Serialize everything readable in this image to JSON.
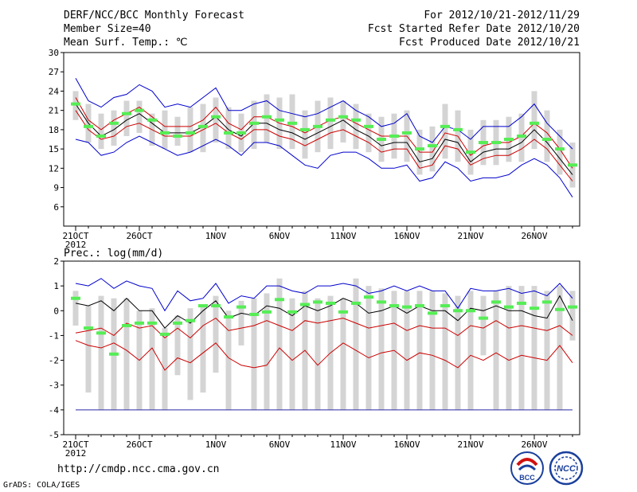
{
  "header": {
    "title": "DERF/NCC/BCC Monthly Forecast",
    "member_size": "Member Size=40",
    "variable": "Mean Surf. Temp.: ℃",
    "period": "For 2012/10/21-2012/11/29",
    "started": "Fcst Started Refer Date 2012/10/20",
    "produced": "Fcst Produced Date 2012/10/21"
  },
  "footer": {
    "url": "http://cmdp.ncc.cma.gov.cn",
    "credit": "GrADS: COLA/IGES",
    "logo_left_text": "BCC",
    "logo_right_text": "NCC"
  },
  "colors": {
    "mean_line": "#000000",
    "spread_line": "#cc0000",
    "extreme_line": "#0000cc",
    "box": "#d4d4d4",
    "marker": "#55ee55",
    "axis": "#000000"
  },
  "chart_data": [
    {
      "type": "line",
      "title": "Mean Surf. Temp.: ℃",
      "ylim": [
        3,
        30
      ],
      "yticks": [
        30,
        27,
        24,
        21,
        18,
        15,
        12,
        9,
        6
      ],
      "xticks": [
        {
          "day": 0,
          "label": "21OCT",
          "sub": "2012"
        },
        {
          "day": 5,
          "label": "26OCT"
        },
        {
          "day": 11,
          "label": "1NOV"
        },
        {
          "day": 16,
          "label": "6NOV"
        },
        {
          "day": 21,
          "label": "11NOV"
        },
        {
          "day": 26,
          "label": "16NOV"
        },
        {
          "day": 31,
          "label": "21NOV"
        },
        {
          "day": 36,
          "label": "26NOV"
        }
      ],
      "series": [
        {
          "name": "max",
          "role": "extreme",
          "values": [
            26.0,
            22.5,
            21.5,
            23.0,
            23.5,
            25.0,
            24.0,
            21.5,
            22.0,
            21.5,
            23.0,
            24.5,
            21.0,
            21.0,
            22.0,
            22.5,
            21.0,
            20.5,
            20.0,
            20.5,
            21.5,
            22.5,
            21.0,
            20.0,
            18.5,
            19.0,
            20.5,
            17.0,
            16.0,
            18.5,
            18.0,
            16.5,
            18.5,
            18.5,
            18.5,
            20.0,
            22.0,
            19.0,
            17.0,
            15.0
          ]
        },
        {
          "name": "upper",
          "role": "spread",
          "values": [
            23.0,
            19.5,
            18.0,
            19.5,
            20.5,
            21.5,
            20.0,
            18.5,
            18.5,
            18.5,
            19.5,
            21.5,
            19.0,
            18.0,
            20.0,
            20.0,
            19.0,
            18.5,
            17.5,
            18.5,
            19.5,
            20.0,
            19.0,
            18.0,
            17.0,
            17.0,
            17.0,
            14.5,
            14.5,
            17.5,
            17.0,
            14.0,
            15.5,
            16.0,
            16.0,
            17.0,
            19.0,
            17.5,
            15.0,
            12.0
          ]
        },
        {
          "name": "mean",
          "role": "mean",
          "values": [
            22.0,
            19.0,
            17.0,
            18.0,
            19.5,
            20.5,
            19.0,
            17.5,
            17.5,
            17.5,
            18.5,
            20.0,
            18.0,
            17.0,
            19.0,
            19.0,
            18.0,
            17.5,
            16.5,
            17.5,
            18.5,
            19.5,
            18.0,
            17.0,
            15.5,
            16.0,
            16.0,
            13.0,
            13.5,
            16.5,
            16.0,
            13.0,
            14.5,
            15.0,
            15.0,
            16.0,
            18.0,
            16.0,
            13.5,
            11.0
          ]
        },
        {
          "name": "lower",
          "role": "spread",
          "values": [
            21.0,
            18.0,
            16.5,
            17.0,
            18.5,
            19.0,
            18.0,
            17.0,
            17.0,
            17.0,
            18.0,
            19.0,
            17.5,
            16.5,
            18.0,
            18.0,
            17.0,
            16.5,
            15.5,
            16.5,
            17.5,
            18.0,
            17.0,
            16.0,
            14.5,
            15.0,
            15.0,
            12.0,
            12.5,
            15.5,
            15.0,
            12.5,
            13.5,
            14.0,
            14.0,
            15.0,
            16.5,
            15.0,
            12.5,
            10.0
          ]
        },
        {
          "name": "min",
          "role": "extreme",
          "values": [
            16.5,
            16.0,
            14.0,
            14.5,
            16.0,
            17.0,
            16.0,
            15.0,
            14.0,
            14.5,
            15.5,
            16.5,
            15.5,
            14.0,
            16.0,
            16.0,
            15.5,
            14.0,
            12.5,
            12.0,
            14.0,
            14.5,
            14.5,
            13.5,
            12.0,
            12.0,
            12.5,
            10.0,
            10.5,
            13.0,
            12.0,
            10.0,
            10.5,
            10.5,
            11.0,
            12.5,
            13.5,
            12.5,
            10.5,
            7.5
          ]
        }
      ],
      "boxes": [
        {
          "low": 19.5,
          "high": 24.0,
          "marker": 22.0
        },
        {
          "low": 16.0,
          "high": 22.0,
          "marker": 18.5
        },
        {
          "low": 15.0,
          "high": 20.5,
          "marker": 17.0
        },
        {
          "low": 15.5,
          "high": 21.0,
          "marker": 19.0
        },
        {
          "low": 17.0,
          "high": 22.5,
          "marker": 20.5
        },
        {
          "low": 17.5,
          "high": 22.5,
          "marker": 21.0
        },
        {
          "low": 15.5,
          "high": 20.5,
          "marker": 19.5
        },
        {
          "low": 15.0,
          "high": 21.0,
          "marker": 17.5
        },
        {
          "low": 15.5,
          "high": 20.0,
          "marker": 17.0
        },
        {
          "low": 14.5,
          "high": 21.5,
          "marker": 17.5
        },
        {
          "low": 14.5,
          "high": 22.0,
          "marker": 18.5
        },
        {
          "low": 16.0,
          "high": 23.0,
          "marker": 20.0
        },
        {
          "low": 15.0,
          "high": 21.5,
          "marker": 17.5
        },
        {
          "low": 14.5,
          "high": 20.5,
          "marker": 17.5
        },
        {
          "low": 15.0,
          "high": 22.5,
          "marker": 19.0
        },
        {
          "low": 16.0,
          "high": 23.5,
          "marker": 20.0
        },
        {
          "low": 15.0,
          "high": 23.0,
          "marker": 19.5
        },
        {
          "low": 15.0,
          "high": 23.5,
          "marker": 19.0
        },
        {
          "low": 13.5,
          "high": 21.0,
          "marker": 18.0
        },
        {
          "low": 14.5,
          "high": 22.5,
          "marker": 18.5
        },
        {
          "low": 15.0,
          "high": 23.0,
          "marker": 19.5
        },
        {
          "low": 16.0,
          "high": 22.5,
          "marker": 20.0
        },
        {
          "low": 15.0,
          "high": 22.0,
          "marker": 19.5
        },
        {
          "low": 14.5,
          "high": 20.5,
          "marker": 18.5
        },
        {
          "low": 13.0,
          "high": 20.0,
          "marker": 16.5
        },
        {
          "low": 13.5,
          "high": 20.5,
          "marker": 17.0
        },
        {
          "low": 13.0,
          "high": 21.0,
          "marker": 17.5
        },
        {
          "low": 11.0,
          "high": 18.0,
          "marker": 15.0
        },
        {
          "low": 11.5,
          "high": 18.5,
          "marker": 15.5
        },
        {
          "low": 13.5,
          "high": 22.0,
          "marker": 18.5
        },
        {
          "low": 13.0,
          "high": 21.0,
          "marker": 18.0
        },
        {
          "low": 11.0,
          "high": 18.0,
          "marker": 14.5
        },
        {
          "low": 12.5,
          "high": 19.5,
          "marker": 16.0
        },
        {
          "low": 12.5,
          "high": 19.5,
          "marker": 16.0
        },
        {
          "low": 13.0,
          "high": 20.0,
          "marker": 16.5
        },
        {
          "low": 13.0,
          "high": 20.5,
          "marker": 17.0
        },
        {
          "low": 15.0,
          "high": 24.0,
          "marker": 19.0
        },
        {
          "low": 13.0,
          "high": 21.0,
          "marker": 16.5
        },
        {
          "low": 11.0,
          "high": 18.0,
          "marker": 15.0
        },
        {
          "low": 9.0,
          "high": 16.0,
          "marker": 12.5
        }
      ]
    },
    {
      "type": "line",
      "title": "Prec.: log(mm/d)",
      "ylim": [
        -5,
        2
      ],
      "yticks": [
        2,
        1,
        0,
        -1,
        -2,
        -3,
        -4,
        -5
      ],
      "floor": -4,
      "xticks": [
        {
          "day": 0,
          "label": "21OCT",
          "sub": "2012"
        },
        {
          "day": 5,
          "label": "26OCT"
        },
        {
          "day": 11,
          "label": "1NOV"
        },
        {
          "day": 16,
          "label": "6NOV"
        },
        {
          "day": 21,
          "label": "11NOV"
        },
        {
          "day": 26,
          "label": "16NOV"
        },
        {
          "day": 31,
          "label": "21NOV"
        },
        {
          "day": 36,
          "label": "26NOV"
        }
      ],
      "series": [
        {
          "name": "max",
          "role": "extreme",
          "values": [
            1.1,
            1.0,
            1.3,
            0.9,
            1.2,
            1.0,
            0.9,
            0.0,
            0.8,
            0.4,
            0.5,
            1.1,
            0.3,
            0.6,
            0.5,
            1.0,
            1.0,
            0.8,
            0.7,
            1.0,
            1.0,
            1.1,
            1.0,
            0.7,
            0.8,
            1.0,
            0.8,
            1.0,
            0.8,
            0.8,
            0.1,
            0.9,
            0.8,
            0.8,
            0.9,
            0.7,
            0.8,
            0.6,
            1.1,
            0.5
          ]
        },
        {
          "name": "upper",
          "role": "mean",
          "values": [
            0.3,
            0.2,
            0.4,
            0.0,
            0.5,
            0.0,
            0.0,
            -0.7,
            -0.2,
            -0.5,
            0.0,
            0.4,
            -0.3,
            -0.1,
            -0.2,
            0.2,
            0.1,
            -0.2,
            0.2,
            0.0,
            0.2,
            0.5,
            0.3,
            -0.1,
            0.0,
            0.2,
            -0.1,
            0.2,
            0.0,
            0.0,
            -0.4,
            0.1,
            0.0,
            0.2,
            0.0,
            0.0,
            -0.2,
            -0.3,
            0.6,
            -0.4
          ]
        },
        {
          "name": "mid",
          "role": "spread",
          "values": [
            -0.9,
            -0.8,
            -0.7,
            -1.0,
            -0.5,
            -0.7,
            -0.6,
            -1.1,
            -0.7,
            -1.1,
            -0.6,
            -0.3,
            -0.8,
            -0.7,
            -0.6,
            -0.4,
            -0.6,
            -0.8,
            -0.4,
            -0.5,
            -0.4,
            -0.3,
            -0.5,
            -0.7,
            -0.6,
            -0.5,
            -0.8,
            -0.6,
            -0.7,
            -0.7,
            -1.0,
            -0.6,
            -0.7,
            -0.4,
            -0.7,
            -0.6,
            -0.7,
            -0.8,
            -0.6,
            -1.0
          ]
        },
        {
          "name": "lower",
          "role": "spread",
          "values": [
            -1.2,
            -1.4,
            -1.5,
            -1.3,
            -1.6,
            -2.0,
            -1.5,
            -2.4,
            -1.9,
            -2.1,
            -1.7,
            -1.3,
            -1.9,
            -2.2,
            -2.3,
            -2.2,
            -1.5,
            -2.0,
            -1.6,
            -2.2,
            -1.7,
            -1.3,
            -1.6,
            -1.9,
            -1.7,
            -1.6,
            -2.0,
            -1.7,
            -1.8,
            -2.0,
            -2.3,
            -1.8,
            -2.0,
            -1.7,
            -2.0,
            -1.8,
            -1.9,
            -2.0,
            -1.4,
            -2.1
          ]
        }
      ],
      "boxes": [
        {
          "low": -0.6,
          "high": 0.8,
          "marker": 0.5
        },
        {
          "low": -3.3,
          "high": 0.2,
          "marker": -0.7
        },
        {
          "low": -4.0,
          "high": 0.6,
          "marker": -0.9
        },
        {
          "low": -4.0,
          "high": 0.5,
          "marker": -1.75
        },
        {
          "low": -4.0,
          "high": 0.5,
          "marker": -0.6
        },
        {
          "low": -4.0,
          "high": 0.0,
          "marker": -0.5
        },
        {
          "low": -4.0,
          "high": 0.1,
          "marker": -0.5
        },
        {
          "low": -4.0,
          "high": -0.7,
          "marker": -0.95
        },
        {
          "low": -2.6,
          "high": -0.2,
          "marker": -0.5
        },
        {
          "low": -3.6,
          "high": 0.1,
          "marker": -0.4
        },
        {
          "low": -3.3,
          "high": 0.2,
          "marker": 0.2
        },
        {
          "low": -2.5,
          "high": 0.6,
          "marker": 0.2
        },
        {
          "low": -4.0,
          "high": 0.0,
          "marker": -0.25
        },
        {
          "low": -1.4,
          "high": 0.4,
          "marker": 0.15
        },
        {
          "low": -4.0,
          "high": 0.5,
          "marker": -0.15
        },
        {
          "low": -4.0,
          "high": 0.7,
          "marker": -0.05
        },
        {
          "low": -4.0,
          "high": 1.3,
          "marker": 0.45
        },
        {
          "low": -4.0,
          "high": 0.5,
          "marker": -0.05
        },
        {
          "low": -4.0,
          "high": 0.8,
          "marker": 0.25
        },
        {
          "low": -4.0,
          "high": 0.5,
          "marker": 0.35
        },
        {
          "low": -4.0,
          "high": 0.6,
          "marker": 0.3
        },
        {
          "low": -4.0,
          "high": 0.5,
          "marker": -0.05
        },
        {
          "low": -4.0,
          "high": 1.3,
          "marker": 0.3
        },
        {
          "low": -4.0,
          "high": 1.0,
          "marker": 0.55
        },
        {
          "low": -4.0,
          "high": 0.9,
          "marker": 0.35
        },
        {
          "low": -4.0,
          "high": 0.8,
          "marker": 0.2
        },
        {
          "low": -4.0,
          "high": 0.8,
          "marker": 0.15
        },
        {
          "low": -4.0,
          "high": 0.8,
          "marker": 0.2
        },
        {
          "low": -4.0,
          "high": 0.8,
          "marker": -0.1
        },
        {
          "low": -4.0,
          "high": 0.7,
          "marker": 0.2
        },
        {
          "low": -4.0,
          "high": 0.6,
          "marker": 0.0
        },
        {
          "low": -4.0,
          "high": 0.8,
          "marker": 0.0
        },
        {
          "low": -1.8,
          "high": 0.6,
          "marker": -0.3
        },
        {
          "low": -4.0,
          "high": 0.8,
          "marker": 0.35
        },
        {
          "low": -4.0,
          "high": 1.0,
          "marker": 0.15
        },
        {
          "low": -4.0,
          "high": 1.0,
          "marker": 0.3
        },
        {
          "low": -4.0,
          "high": 1.0,
          "marker": 0.1
        },
        {
          "low": -4.0,
          "high": 0.8,
          "marker": 0.35
        },
        {
          "low": -4.0,
          "high": 1.0,
          "marker": 0.05
        },
        {
          "low": -1.2,
          "high": 0.8,
          "marker": 0.15
        }
      ]
    }
  ]
}
